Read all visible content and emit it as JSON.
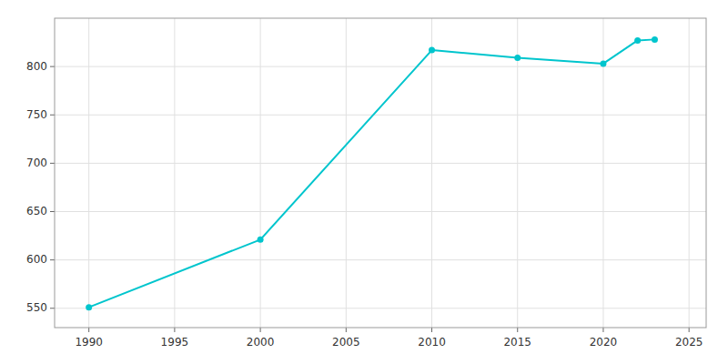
{
  "chart_data": {
    "type": "line",
    "x": [
      1990,
      2000,
      2010,
      2015,
      2020,
      2022,
      2023
    ],
    "values": [
      551,
      621,
      817,
      809,
      803,
      827,
      828
    ],
    "color": "#00C5CD",
    "marker": "circle",
    "xlim": [
      1988,
      2026
    ],
    "ylim": [
      530,
      850
    ],
    "xticks": [
      1990,
      1995,
      2000,
      2005,
      2010,
      2015,
      2020,
      2025
    ],
    "yticks": [
      550,
      600,
      650,
      700,
      750,
      800
    ],
    "grid": true
  }
}
